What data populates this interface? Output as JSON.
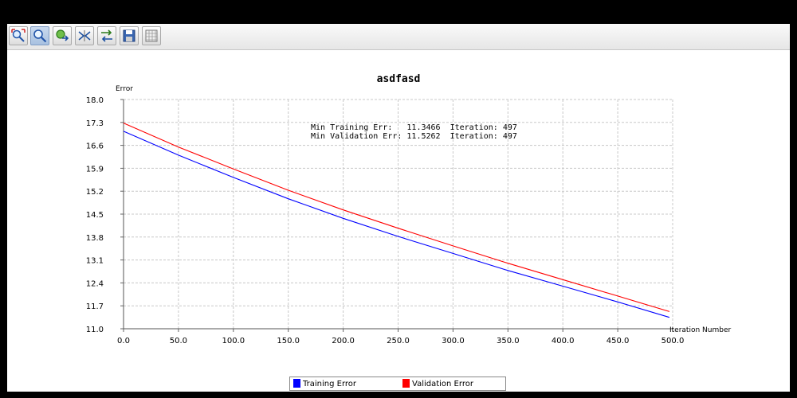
{
  "toolbar": {
    "buttons": [
      {
        "name": "zoom-box-icon"
      },
      {
        "name": "zoom-icon",
        "active": true
      },
      {
        "name": "pan-icon"
      },
      {
        "name": "reset-icon"
      },
      {
        "name": "properties-icon"
      },
      {
        "name": "save-icon"
      },
      {
        "name": "table-icon"
      }
    ]
  },
  "chart_data": {
    "type": "line",
    "title": "asdfasd",
    "xlabel": "Iteration Number",
    "ylabel": "Error",
    "xlim": [
      0,
      500
    ],
    "ylim": [
      11.0,
      18.0
    ],
    "x_ticks": [
      "0.0",
      "50.0",
      "100.0",
      "150.0",
      "200.0",
      "250.0",
      "300.0",
      "350.0",
      "400.0",
      "450.0",
      "500.0"
    ],
    "y_ticks": [
      "11.0",
      "11.7",
      "12.4",
      "13.1",
      "13.8",
      "14.5",
      "15.2",
      "15.9",
      "16.6",
      "17.3",
      "18.0"
    ],
    "grid": true,
    "legend_position": "bottom",
    "annotations": [
      "Min Training Err:   11.3466  Iteration: 497",
      "Min Validation Err: 11.5262  Iteration: 497"
    ],
    "series": [
      {
        "name": "Training Error",
        "color": "#0000ff",
        "x": [
          0,
          50,
          100,
          150,
          200,
          250,
          300,
          350,
          400,
          450,
          497
        ],
        "y": [
          17.03,
          16.3,
          15.62,
          14.97,
          14.37,
          13.82,
          13.3,
          12.78,
          12.3,
          11.82,
          11.3466
        ]
      },
      {
        "name": "Validation Error",
        "color": "#ff0000",
        "x": [
          0,
          50,
          100,
          150,
          200,
          250,
          300,
          350,
          400,
          450,
          497
        ],
        "y": [
          17.28,
          16.55,
          15.88,
          15.23,
          14.63,
          14.07,
          13.53,
          13.0,
          12.5,
          12.0,
          11.5262
        ]
      }
    ]
  }
}
